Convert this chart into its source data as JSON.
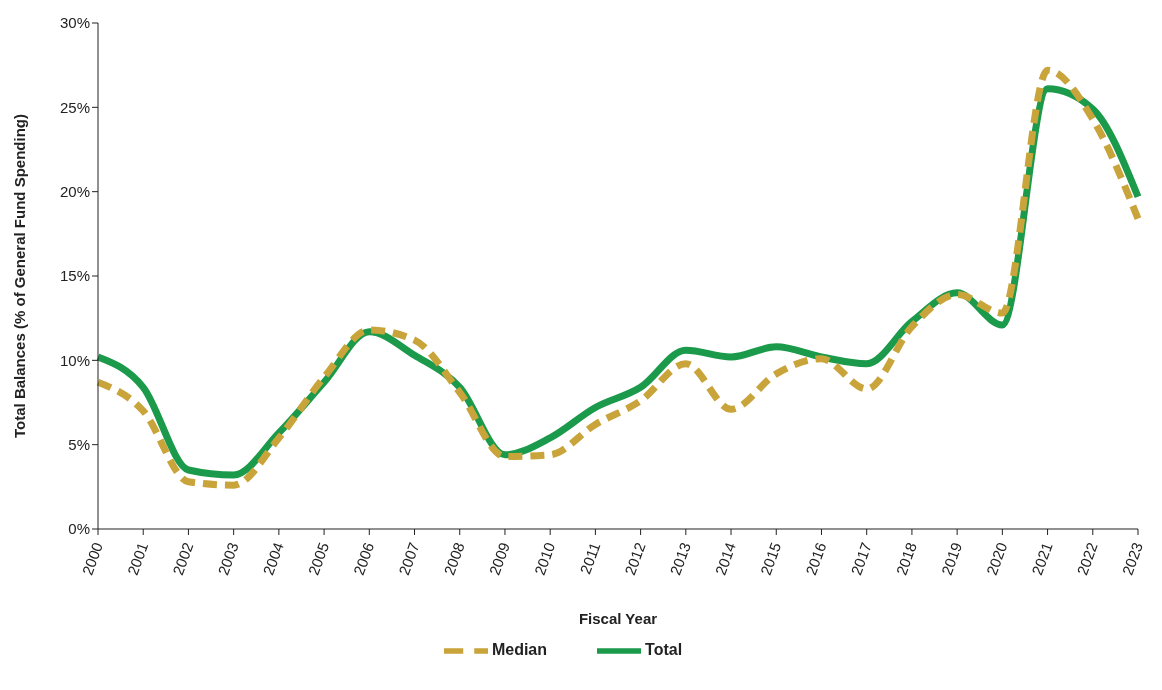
{
  "chart_data": {
    "type": "line",
    "xlabel": "Fiscal Year",
    "ylabel": "Total Balances (% of General Fund Spending)",
    "categories": [
      "2000",
      "2001",
      "2002",
      "2003",
      "2004",
      "2005",
      "2006",
      "2007",
      "2008",
      "2009",
      "2010",
      "2011",
      "2012",
      "2013",
      "2014",
      "2015",
      "2016",
      "2017",
      "2018",
      "2019",
      "2020",
      "2021",
      "2022",
      "2023"
    ],
    "series": [
      {
        "name": "Total",
        "color": "#1a9a4a",
        "line_style": "solid",
        "values": [
          10.2,
          8.4,
          3.5,
          3.2,
          5.7,
          8.7,
          11.7,
          10.3,
          8.4,
          4.4,
          5.4,
          7.2,
          8.4,
          10.6,
          10.2,
          10.8,
          10.2,
          9.8,
          12.3,
          14.0,
          12.1,
          26.1,
          24.9,
          19.7
        ]
      },
      {
        "name": "Median",
        "color": "#c9a43a",
        "line_style": "dashed",
        "values": [
          8.7,
          7.0,
          2.8,
          2.6,
          5.4,
          9.0,
          11.8,
          11.2,
          8.1,
          4.3,
          4.4,
          6.2,
          7.6,
          9.8,
          7.1,
          9.2,
          10.1,
          8.3,
          12.0,
          13.9,
          12.8,
          27.2,
          24.3,
          18.4
        ]
      }
    ],
    "ylim": [
      0,
      30
    ],
    "yticks": [
      {
        "value": 0,
        "label": "0%"
      },
      {
        "value": 5,
        "label": "5%"
      },
      {
        "value": 10,
        "label": "10%"
      },
      {
        "value": 15,
        "label": "15%"
      },
      {
        "value": 20,
        "label": "20%"
      },
      {
        "value": 25,
        "label": "25%"
      },
      {
        "value": 30,
        "label": "30%"
      }
    ],
    "grid": false,
    "legend": "bottom",
    "marker": "none"
  }
}
